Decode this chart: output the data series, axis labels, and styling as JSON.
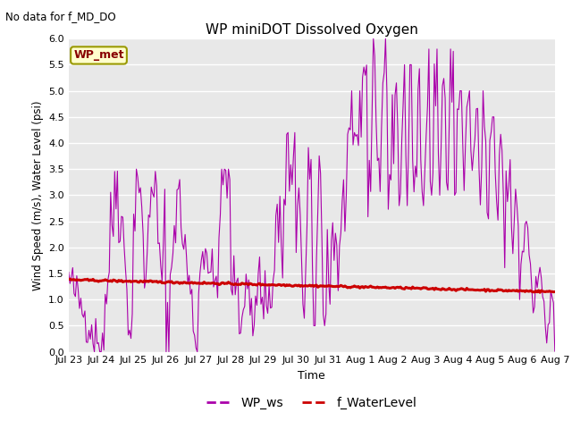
{
  "title": "WP miniDOT Dissolved Oxygen",
  "no_data_label": "No data for f_MD_DO",
  "xlabel": "Time",
  "ylabel": "Wind Speed (m/s), Water Level (psi)",
  "ylim": [
    0.0,
    6.0
  ],
  "yticks": [
    0.0,
    0.5,
    1.0,
    1.5,
    2.0,
    2.5,
    3.0,
    3.5,
    4.0,
    4.5,
    5.0,
    5.5,
    6.0
  ],
  "legend_label_ws": "WP_ws",
  "legend_label_wl": "f_WaterLevel",
  "ws_color": "#AA00AA",
  "wl_color": "#CC0000",
  "wp_met_label": "WP_met",
  "wp_met_color": "#880000",
  "wp_met_bg": "#FFFFCC",
  "wp_met_edge": "#999900",
  "background_color": "#E8E8E8",
  "tick_labels": [
    "Jul 23",
    "Jul 24",
    "Jul 25",
    "Jul 26",
    "Jul 27",
    "Jul 28",
    "Jul 29",
    "Jul 30",
    "Jul 31",
    "Aug 1",
    "Aug 2",
    "Aug 3",
    "Aug 4",
    "Aug 5",
    "Aug 6",
    "Aug 7"
  ],
  "tick_positions": [
    0,
    1,
    2,
    3,
    4,
    5,
    6,
    7,
    8,
    9,
    10,
    11,
    12,
    13,
    14,
    15
  ]
}
